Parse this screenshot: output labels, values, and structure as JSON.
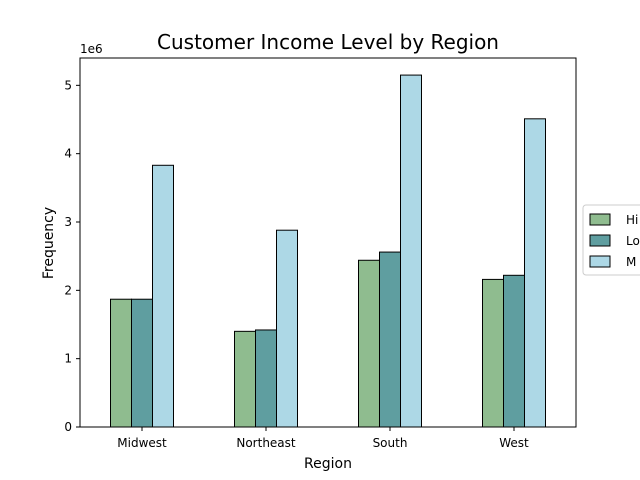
{
  "chart_data": {
    "type": "bar",
    "title": "Customer Income Level by Region",
    "xlabel": "Region",
    "ylabel": "Frequency",
    "y_offset_label": "1e6",
    "categories": [
      "Midwest",
      "Northeast",
      "South",
      "West"
    ],
    "ylim": [
      0,
      5400000
    ],
    "yticks": [
      0,
      1000000,
      2000000,
      3000000,
      4000000,
      5000000
    ],
    "ytick_labels": [
      "0",
      "1",
      "2",
      "3",
      "4",
      "5"
    ],
    "grid": false,
    "legend_position": "right (partially cut off)",
    "series": [
      {
        "name": "Hi",
        "color": "#8fbc8f",
        "values": [
          1870000,
          1400000,
          2440000,
          2160000
        ]
      },
      {
        "name": "Lo",
        "color": "#5f9ea0",
        "values": [
          1870000,
          1420000,
          2560000,
          2220000
        ]
      },
      {
        "name": "M",
        "color": "#add8e6",
        "values": [
          3830000,
          2880000,
          5150000,
          4510000
        ]
      }
    ]
  }
}
